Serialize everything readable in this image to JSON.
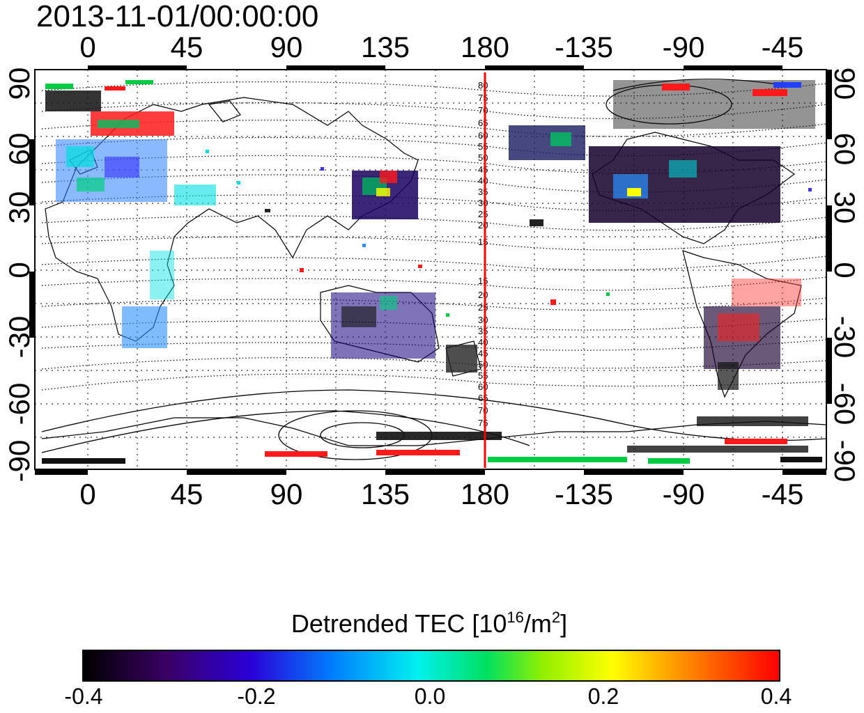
{
  "title": "2013-11-01/00:00:00",
  "top_lon_ticks": [
    "0",
    "45",
    "90",
    "135",
    "180",
    "-135",
    "-90",
    "-45"
  ],
  "bottom_lon_ticks": [
    "0",
    "45",
    "90",
    "135",
    "180",
    "-135",
    "-90",
    "-45"
  ],
  "left_lat_ticks": [
    "90",
    "60",
    "30",
    "0",
    "-30",
    "-60",
    "-90"
  ],
  "right_lat_ticks": [
    "90",
    "60",
    "30",
    "0",
    "-30",
    "-60",
    "-90"
  ],
  "contour_labels_north": [
    "80",
    "75",
    "70",
    "65",
    "60",
    "55",
    "50",
    "45",
    "40",
    "35",
    "30",
    "25",
    "20",
    "15"
  ],
  "contour_labels_south": [
    "15",
    "20",
    "25",
    "30",
    "35",
    "40",
    "45",
    "50",
    "55",
    "60",
    "65",
    "70",
    "75"
  ],
  "colorbar": {
    "title_main": "Detrended TEC  [10",
    "title_sup1": "16",
    "title_mid": "/m",
    "title_sup2": "2",
    "title_end": "]",
    "ticks": [
      "-0.4",
      "-0.2",
      "0.0",
      "0.2",
      "0.4"
    ],
    "range": [
      -0.4,
      0.4
    ]
  },
  "marker_longitude": 180,
  "colors": {
    "marker_line": "#ff0000"
  }
}
